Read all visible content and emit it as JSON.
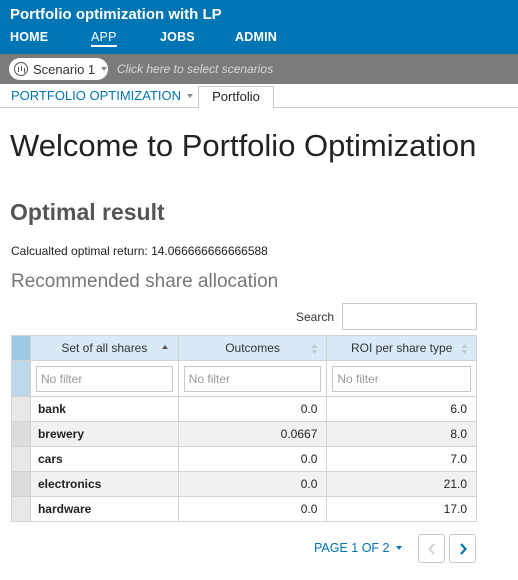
{
  "app": {
    "title": "Portfolio optimization with LP"
  },
  "nav": {
    "items": [
      "HOME",
      "APP",
      "JOBS",
      "ADMIN"
    ],
    "active": "APP"
  },
  "scenario": {
    "selected": "Scenario 1",
    "hint": "Click here to select scenarios"
  },
  "tabs": {
    "dropdown": "PORTFOLIO OPTIMIZATION",
    "active_tab": "Portfolio"
  },
  "page": {
    "title": "Welcome to Portfolio Optimization",
    "section_title": "Optimal result",
    "return_text": "Calcualted optimal return: 14.066666666666588",
    "table_title": "Recommended share allocation"
  },
  "search": {
    "label": "Search",
    "value": ""
  },
  "table": {
    "columns": [
      "Set of all shares",
      "Outcomes",
      "ROI per share type"
    ],
    "filter_placeholder": "No filter",
    "rows": [
      {
        "share": "bank",
        "outcome": "0.0",
        "roi": "6.0"
      },
      {
        "share": "brewery",
        "outcome": "0.0667",
        "roi": "8.0"
      },
      {
        "share": "cars",
        "outcome": "0.0",
        "roi": "7.0"
      },
      {
        "share": "electronics",
        "outcome": "0.0",
        "roi": "21.0"
      },
      {
        "share": "hardware",
        "outcome": "0.0",
        "roi": "17.0"
      }
    ]
  },
  "pagination": {
    "label": "PAGE 1 OF 2"
  },
  "colors": {
    "header": "#0075b4",
    "scenario_bar": "#7b7b7b",
    "table_header": "#d7eaf6",
    "link": "#0075b4"
  },
  "icons": {
    "scenario": "scenario-icon",
    "prev": "chevron-left-icon",
    "next": "chevron-right-icon"
  }
}
